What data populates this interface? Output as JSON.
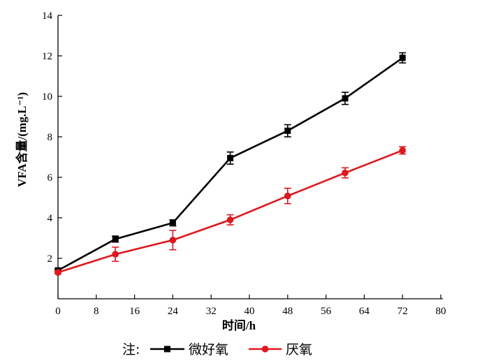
{
  "chart_data": {
    "type": "line",
    "xlabel": "时间/h",
    "ylabel": "VFA含量/(mg.L⁻¹)",
    "xlim": [
      0,
      80
    ],
    "ylim": [
      0,
      14
    ],
    "xticks": [
      0,
      8,
      16,
      24,
      32,
      40,
      48,
      56,
      64,
      72,
      80
    ],
    "yticks": [
      2,
      4,
      6,
      8,
      10,
      12,
      14
    ],
    "grid": false,
    "legend_prefix": "注:",
    "legend_position": "bottom",
    "series": [
      {
        "name": "微好氧",
        "color": "#000000",
        "marker": "square",
        "x": [
          0,
          12,
          24,
          36,
          48,
          60,
          72
        ],
        "y": [
          1.4,
          2.95,
          3.75,
          6.95,
          8.3,
          9.9,
          11.9
        ],
        "err": [
          0.05,
          0.15,
          0.15,
          0.3,
          0.3,
          0.3,
          0.25
        ]
      },
      {
        "name": "厌氧",
        "color": "#e3161d",
        "marker": "circle",
        "x": [
          0,
          12,
          24,
          36,
          48,
          60,
          72
        ],
        "y": [
          1.3,
          2.2,
          2.9,
          3.9,
          5.08,
          6.22,
          7.33
        ],
        "err": [
          0.05,
          0.35,
          0.48,
          0.25,
          0.38,
          0.25,
          0.18
        ]
      }
    ]
  }
}
